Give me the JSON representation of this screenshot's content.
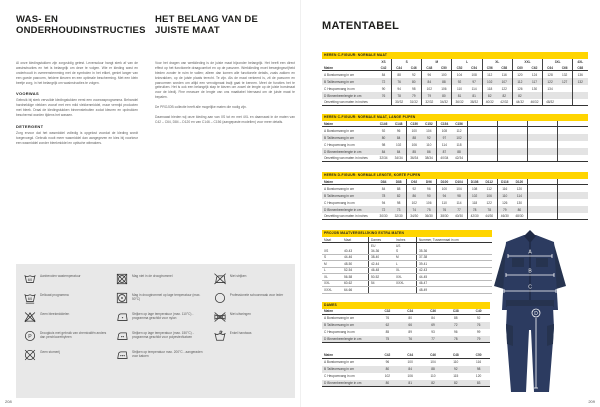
{
  "colors": {
    "accent_yellow": "#FFD500",
    "garment_navy": "#2c3b60",
    "garment_navy_dark": "#26334f",
    "row_stripe": "#e3e3e3"
  },
  "left_page": {
    "page_number": "208",
    "col1": {
      "title": "WAS- EN ONDERHOUDINSTRUCTIES",
      "intro": "Al onze kledingstukken zijn zorgvuldig getest. Levensduur hangt sterk af van de wasinstructies en het is belangrijk om deze te volgen. Wie er kleding wast en onderhoudt in overeenstemming met de symbolen in het etiket, geniet langer van een goede pasvorm, heldere kleuren en een optimale bescherming. Met een klein beetje zorg, in het belangrijk om wasinstructies te volgen.",
      "sections": [
        {
          "heading": "VOORWAS",
          "body": "Gebruik bij sterk vervuilde kledingstukken eerst een voorwasprogramma. Behandel hardnekkige vlekken vooraf met een mild vlekkenmiddel, maar vermijd producten met bleek. Draai de kledingstukken binnenstebuiten zodat kleuren en opdrukken beschermd worden tijdens het wassen."
        },
        {
          "heading": "DETERGENT",
          "body": "Zorg ervoor dat het wasmiddel volledig is opgelost voordat de kleding wordt toegevoegd. Gebruik nooit meer wasmiddel dan aangegeven en kies bij voorkeur een wasmiddel zonder bleekmiddel en optische witmakers."
        }
      ]
    },
    "col2": {
      "title": "HET BELANG VAN DE JUISTE MAAT",
      "paragraphs": [
        "Voor het dragen van werkkleding is de juiste maat bijzonder belangrijk. Het heeft een direct effect op het functionele draagcomfort en op de pasvorm. Werkkleding moet bewegingsvrijheid bieden zonder te ruim te vallen; alleen dan komen alle functionele details, zoals zakken en kniezakken, op de juiste plaats terecht. Te zijn. Als de maat verkeerd is, zit de pasvorm en pasvormen worden om altijd een vervolgmaat kwijt gaat te kennen. Meet de functies het te gebruiken. Het is ook een belangrijk stap te kiezen om zowel de lengte op de juiste borstmaat voor de kledij. Fine measure de lengte van ons maattabel hiernaast om de juiste maat te bepalen.",
        "De PROJOB collectie heeft alle mogelijke maten die nodig zijn.",
        "Daarnaast bieden wij onze kleding aan van XS tot en met 4XL en daarnaast in de maten van C42 – C64, D84 – D120 en van C146 – C156 (aangepaste modellen) voor meer details."
      ]
    },
    "care_symbols": {
      "columns": [
        [
          {
            "icon": "wash-60-icon",
            "label": "Aanbevolen wastemperatuur"
          },
          {
            "icon": "wash-60-delicate-icon",
            "label": "Delicaat programma"
          },
          {
            "icon": "no-bleach-icon",
            "label": "Geen bleekmiddelen"
          },
          {
            "icon": "dryclean-p-icon",
            "label": "Droogkuis met gebruik van chemicaliën anders dan perchloorethyleen"
          },
          {
            "icon": "no-dryclean-icon",
            "label": "Geen stomerij"
          }
        ],
        [
          {
            "icon": "no-tumble-dry-icon",
            "label": "Mag niet in de droogtrommel"
          },
          {
            "icon": "tumble-dry-low-icon",
            "label": "Mag in droogtrommel op lage temperatuur (max. 50°C)"
          },
          {
            "icon": "iron-1-dot-icon",
            "label": "Strijken op lage temperatuur (max. 110°C) - programma geschikt voor nylon"
          },
          {
            "icon": "iron-2-dot-icon",
            "label": "Strijken op lage temperatuur (max. 150°C) - programma geschikt voor polyester/katoen"
          },
          {
            "icon": "iron-3-dot-icon",
            "label": "Strijken op temperatuur max. 200°C - aangeraden voor katoen"
          }
        ],
        [
          {
            "icon": "no-iron-icon",
            "label": "Niet strijken"
          },
          {
            "icon": "pro-clean-icon",
            "label": "Professionele schoonmaak voor leder"
          },
          {
            "icon": "no-wring-icon",
            "label": "Niet uitwringen"
          },
          {
            "icon": "handwash-icon",
            "label": "Enkel handwas"
          }
        ]
      ]
    }
  },
  "right_page": {
    "title": "MATENTABEL",
    "page_number": "209",
    "figure": {
      "labels": [
        "A",
        "B",
        "C",
        "D"
      ]
    },
    "size_tables": [
      {
        "header": "HEREN C-FIGUUR: Normale maat",
        "groups": [
          {
            "label": "XS",
            "span": 1
          },
          {
            "label": "S",
            "span": 2
          },
          {
            "label": "M",
            "span": 2
          },
          {
            "label": "L",
            "span": 2
          },
          {
            "label": "XL",
            "span": 2
          },
          {
            "label": "XXL",
            "span": 2
          },
          {
            "label": "3XL",
            "span": 2
          },
          {
            "label": "4XL",
            "span": 1
          }
        ],
        "sizes_label": "Maten",
        "sizes": [
          "C42",
          "C44",
          "C46",
          "C48",
          "C50",
          "C52",
          "C54",
          "C56",
          "C58",
          "C60",
          "C62",
          "C64",
          "C66",
          "C68"
        ],
        "rows": [
          {
            "label": "A Borstomvang in cm",
            "values": [
              "84",
              "88",
              "92",
              "96",
              "100",
              "104",
              "108",
              "112",
              "116",
              "120",
              "124",
              "128",
              "132",
              "136"
            ]
          },
          {
            "label": "B Tailleomvang in cm",
            "values": [
              "72",
              "76",
              "80",
              "84",
              "88",
              "92",
              "97",
              "102",
              "107",
              "112",
              "117",
              "122",
              "127",
              "132"
            ]
          },
          {
            "label": "C Heupomvang in cm",
            "values": [
              "90",
              "94",
              "98",
              "102",
              "106",
              "110",
              "114",
              "118",
              "122",
              "126",
              "130",
              "134",
              "",
              ""
            ]
          },
          {
            "label": "D Binnenbeenlengte in cm",
            "values": [
              "76",
              "78",
              "79",
              "79",
              "80",
              "81",
              "81",
              "82",
              "82",
              "82",
              "",
              "",
              "",
              ""
            ]
          },
          {
            "label": "Omzetting van maten in inches",
            "values": [
              "",
              "30/32",
              "31/32",
              "32/32",
              "34/32",
              "36/32",
              "38/32",
              "40/32",
              "42/32",
              "44/32",
              "46/32",
              "48/32",
              "",
              ""
            ]
          }
        ]
      },
      {
        "header": "HEREN C-FIGUUR: Normale maat, lange pijpen",
        "pair_separators": true,
        "sizes_label": "Maten",
        "sizes": [
          "C146",
          "C148",
          "C150",
          "C152",
          "C154",
          "C156"
        ],
        "rows": [
          {
            "label": "A Borstomvang in cm",
            "values": [
              "92",
              "96",
              "100",
              "104",
              "108",
              "112"
            ]
          },
          {
            "label": "B Tailleomvang in cm",
            "values": [
              "80",
              "84",
              "88",
              "92",
              "97",
              "102"
            ]
          },
          {
            "label": "C Heupomvang in cm",
            "values": [
              "98",
              "102",
              "106",
              "110",
              "114",
              "118"
            ]
          },
          {
            "label": "D Binnenbeenlengte in cm",
            "values": [
              "84",
              "84",
              "85",
              "86",
              "87",
              "88"
            ]
          },
          {
            "label": "Omzetting van maten in inches",
            "values": [
              "32/34",
              "34/34",
              "36/34",
              "38/34",
              "40/34",
              "42/34"
            ]
          }
        ]
      },
      {
        "header": "HEREN D-FIGUUR: Normale lengte, korte pijpen",
        "pair_separators": true,
        "sizes_label": "Maten",
        "sizes": [
          "D84",
          "D88",
          "D92",
          "D96",
          "D100",
          "D104",
          "D108",
          "D112",
          "D116",
          "D120"
        ],
        "rows": [
          {
            "label": "A Borstomvang in cm",
            "values": [
              "84",
              "88",
              "92",
              "96",
              "100",
              "104",
              "108",
              "112",
              "116",
              "120"
            ]
          },
          {
            "label": "B Tailleomvang in cm",
            "values": [
              "78",
              "82",
              "86",
              "90",
              "94",
              "98",
              "102",
              "106",
              "110",
              "114"
            ]
          },
          {
            "label": "C Heupomvang in cm",
            "values": [
              "94",
              "98",
              "102",
              "106",
              "110",
              "114",
              "118",
              "122",
              "126",
              "130"
            ]
          },
          {
            "label": "D Binnenbeenlengte in cm",
            "values": [
              "72",
              "73",
              "74",
              "75",
              "76",
              "77",
              "78",
              "78",
              "79",
              "80"
            ]
          },
          {
            "label": "Omzetting van maten in inches",
            "values": [
              "30/30",
              "32/30",
              "34/30",
              "36/30",
              "38/30",
              "40/30",
              "42/30",
              "44/30",
              "46/30",
              "48/30"
            ]
          }
        ]
      }
    ],
    "conversion_table": {
      "header": "PROJOB MAATVERGELIJKING EXTRA MATEN",
      "columns": [
        "Maat",
        "Maat",
        "Dames",
        "Inches",
        "Nummer, Tussenmaat in cm"
      ],
      "subheader": [
        "",
        "",
        "EU",
        "US",
        ""
      ],
      "rows": [
        [
          "XS",
          "40-43",
          "34-36",
          "S",
          "35-36"
        ],
        [
          "S",
          "44-46",
          "38-40",
          "M",
          "37-38"
        ],
        [
          "M",
          "48-50",
          "42-44",
          "L",
          "39-41"
        ],
        [
          "L",
          "52-54",
          "46-48",
          "XL",
          "42-43"
        ],
        [
          "XL",
          "56-58",
          "50-52",
          "XXL",
          "44-45"
        ],
        [
          "XXL",
          "60-62",
          "54",
          "XXXL",
          "46-47"
        ],
        [
          "XXXL",
          "64-66",
          "",
          "",
          "48-49"
        ]
      ]
    },
    "dames_tables": [
      {
        "header": "DAMES",
        "sizes_label": "Maten",
        "sizes": [
          "C32",
          "C34",
          "C36",
          "C38",
          "C40"
        ],
        "rows": [
          {
            "label": "A Borstomvang in cm",
            "values": [
              "76",
              "80",
              "84",
              "88",
              "92"
            ]
          },
          {
            "label": "B Tailleomvang in cm",
            "values": [
              "62",
              "66",
              "69",
              "72",
              "76"
            ]
          },
          {
            "label": "C Heupomvang in cm",
            "values": [
              "85",
              "89",
              "93",
              "96",
              "99"
            ]
          },
          {
            "label": "D Binnenbeenlengte in cm",
            "values": [
              "75",
              "76",
              "77",
              "78",
              "79"
            ]
          }
        ]
      },
      {
        "sizes_label": "Maten",
        "sizes": [
          "C42",
          "C44",
          "C46",
          "C48",
          "C50"
        ],
        "rows": [
          {
            "label": "A Borstomvang in cm",
            "values": [
              "96",
              "100",
              "104",
              "110",
              "116"
            ]
          },
          {
            "label": "B Tailleomvang in cm",
            "values": [
              "80",
              "84",
              "88",
              "92",
              "98"
            ]
          },
          {
            "label": "C Heupomvang in cm",
            "values": [
              "102",
              "106",
              "110",
              "115",
              "120"
            ]
          },
          {
            "label": "D Binnenbeenlengte in cm",
            "values": [
              "80",
              "81",
              "82",
              "82",
              "83"
            ]
          }
        ]
      }
    ]
  }
}
